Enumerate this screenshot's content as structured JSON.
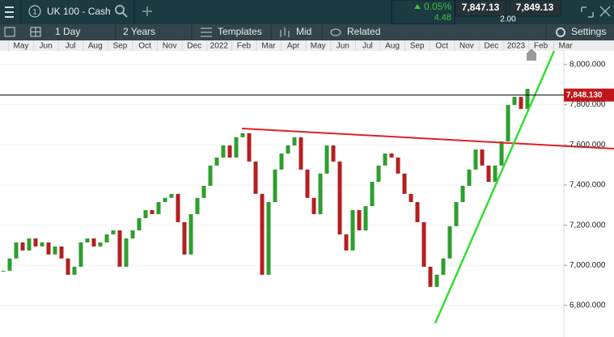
{
  "toolbar": {
    "tab_number": "1",
    "instrument": "UK 100 - Cash",
    "change_percent": "0.05%",
    "change_points": "4.48",
    "sell_price": "7,847.13",
    "buy_price": "7,849.13",
    "spread": "2.00"
  },
  "chart_toolbar": {
    "interval": "1 Day",
    "range": "2 Years",
    "templates": "Templates",
    "price_type": "Mid",
    "related": "Related",
    "settings": "Settings"
  },
  "chart": {
    "type": "candlestick",
    "months": [
      "May",
      "Jun",
      "Jul",
      "Aug",
      "Sep",
      "Oct",
      "Nov",
      "Dec",
      "2022",
      "Feb",
      "Mar",
      "Apr",
      "May",
      "Jun",
      "Jul",
      "Aug",
      "Sep",
      "Oct",
      "Nov",
      "Dec",
      "2023",
      "Feb",
      "Mar"
    ],
    "closes": [
      6973,
      7034,
      7114,
      7074,
      7134,
      7094,
      7114,
      7054,
      7094,
      7034,
      6953,
      6993,
      7114,
      7134,
      7094,
      7114,
      7154,
      7174,
      6993,
      7134,
      7174,
      7235,
      7275,
      7255,
      7315,
      7336,
      7356,
      7215,
      7054,
      7255,
      7336,
      7396,
      7497,
      7537,
      7597,
      7537,
      7638,
      7658,
      7517,
      7356,
      6953,
      7315,
      7477,
      7557,
      7597,
      7638,
      7477,
      7336,
      7255,
      7457,
      7597,
      7517,
      7154,
      7074,
      7275,
      7174,
      7295,
      7416,
      7497,
      7557,
      7537,
      7457,
      7356,
      7315,
      7215,
      6993,
      6893,
      6953,
      7034,
      7195,
      7315,
      7396,
      7477,
      7577,
      7497,
      7416,
      7497,
      7617,
      7799,
      7839,
      7779,
      7879
    ],
    "ylim": [
      6643,
      8068
    ],
    "yticks": [
      {
        "value": 6800,
        "label": "6,800.000"
      },
      {
        "value": 7000,
        "label": "7,000.000"
      },
      {
        "value": 7200,
        "label": "7,200.000"
      },
      {
        "value": 7400,
        "label": "7,400.000"
      },
      {
        "value": 7600,
        "label": "7,600.000"
      },
      {
        "value": 7800,
        "label": "7,800.000"
      },
      {
        "value": 8000,
        "label": "8,000.000"
      }
    ],
    "last_price": {
      "value": 7848.13,
      "label": "7,848.130"
    },
    "up_color": "#2e9e2e",
    "down_color": "#b32020"
  }
}
